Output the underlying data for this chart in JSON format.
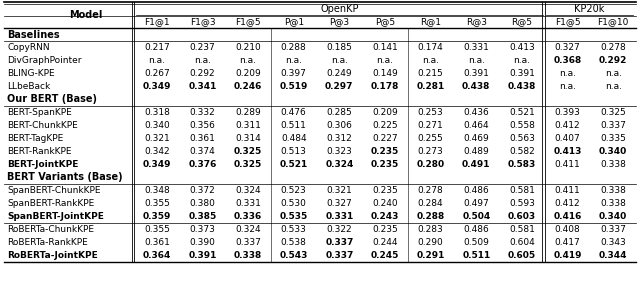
{
  "col_labels_row1": [
    "Model",
    "OpenKP",
    "KP20k"
  ],
  "col_labels_row2": [
    "F1@1",
    "F1@3",
    "F1@5",
    "P@1",
    "P@3",
    "P@5",
    "R@1",
    "R@3",
    "R@5",
    "F1@5",
    "F1@10"
  ],
  "sections": [
    {
      "label": "Baselines",
      "rows": [
        {
          "model": "CopyRNN",
          "bold_model": false,
          "values": [
            "0.217",
            "0.237",
            "0.210",
            "0.288",
            "0.185",
            "0.141",
            "0.174",
            "0.331",
            "0.413",
            "0.327",
            "0.278"
          ],
          "bold_vals": [
            false,
            false,
            false,
            false,
            false,
            false,
            false,
            false,
            false,
            false,
            false
          ]
        },
        {
          "model": "DivGraphPointer",
          "bold_model": false,
          "values": [
            "n.a.",
            "n.a.",
            "n.a.",
            "n.a.",
            "n.a.",
            "n.a.",
            "n.a.",
            "n.a.",
            "n.a.",
            "0.368",
            "0.292"
          ],
          "bold_vals": [
            false,
            false,
            false,
            false,
            false,
            false,
            false,
            false,
            false,
            true,
            true
          ]
        },
        {
          "model": "BLING-KPE",
          "bold_model": false,
          "values": [
            "0.267",
            "0.292",
            "0.209",
            "0.397",
            "0.249",
            "0.149",
            "0.215",
            "0.391",
            "0.391",
            "n.a.",
            "n.a."
          ],
          "bold_vals": [
            false,
            false,
            false,
            false,
            false,
            false,
            false,
            false,
            false,
            false,
            false
          ]
        },
        {
          "model": "LLbeBack",
          "bold_model": false,
          "values": [
            "0.349",
            "0.341",
            "0.246",
            "0.519",
            "0.297",
            "0.178",
            "0.281",
            "0.438",
            "0.438",
            "n.a.",
            "n.a."
          ],
          "bold_vals": [
            true,
            true,
            true,
            true,
            true,
            true,
            true,
            true,
            true,
            false,
            false
          ]
        }
      ]
    },
    {
      "label": "Our BERT (Base)",
      "rows": [
        {
          "model": "BERT-SpanKPE",
          "bold_model": false,
          "values": [
            "0.318",
            "0.332",
            "0.289",
            "0.476",
            "0.285",
            "0.209",
            "0.253",
            "0.436",
            "0.521",
            "0.393",
            "0.325"
          ],
          "bold_vals": [
            false,
            false,
            false,
            false,
            false,
            false,
            false,
            false,
            false,
            false,
            false
          ]
        },
        {
          "model": "BERT-ChunkKPE",
          "bold_model": false,
          "values": [
            "0.340",
            "0.356",
            "0.311",
            "0.511",
            "0.306",
            "0.225",
            "0.271",
            "0.464",
            "0.558",
            "0.412",
            "0.337"
          ],
          "bold_vals": [
            false,
            false,
            false,
            false,
            false,
            false,
            false,
            false,
            false,
            false,
            false
          ]
        },
        {
          "model": "BERT-TagKPE",
          "bold_model": false,
          "values": [
            "0.321",
            "0.361",
            "0.314",
            "0.484",
            "0.312",
            "0.227",
            "0.255",
            "0.469",
            "0.563",
            "0.407",
            "0.335"
          ],
          "bold_vals": [
            false,
            false,
            false,
            false,
            false,
            false,
            false,
            false,
            false,
            false,
            false
          ]
        },
        {
          "model": "BERT-RankKPE",
          "bold_model": false,
          "values": [
            "0.342",
            "0.374",
            "0.325",
            "0.513",
            "0.323",
            "0.235",
            "0.273",
            "0.489",
            "0.582",
            "0.413",
            "0.340"
          ],
          "bold_vals": [
            false,
            false,
            true,
            false,
            false,
            true,
            false,
            false,
            false,
            true,
            true
          ]
        },
        {
          "model": "BERT-JointKPE",
          "bold_model": true,
          "values": [
            "0.349",
            "0.376",
            "0.325",
            "0.521",
            "0.324",
            "0.235",
            "0.280",
            "0.491",
            "0.583",
            "0.411",
            "0.338"
          ],
          "bold_vals": [
            true,
            true,
            true,
            true,
            true,
            true,
            true,
            true,
            true,
            false,
            false
          ]
        }
      ]
    },
    {
      "label": "BERT Variants (Base)",
      "sub_groups": [
        {
          "rows": [
            {
              "model": "SpanBERT-ChunkKPE",
              "bold_model": false,
              "values": [
                "0.348",
                "0.372",
                "0.324",
                "0.523",
                "0.321",
                "0.235",
                "0.278",
                "0.486",
                "0.581",
                "0.411",
                "0.338"
              ],
              "bold_vals": [
                false,
                false,
                false,
                false,
                false,
                false,
                false,
                false,
                false,
                false,
                false
              ]
            },
            {
              "model": "SpanBERT-RankKPE",
              "bold_model": false,
              "values": [
                "0.355",
                "0.380",
                "0.331",
                "0.530",
                "0.327",
                "0.240",
                "0.284",
                "0.497",
                "0.593",
                "0.412",
                "0.338"
              ],
              "bold_vals": [
                false,
                false,
                false,
                false,
                false,
                false,
                false,
                false,
                false,
                false,
                false
              ]
            },
            {
              "model": "SpanBERT-JointKPE",
              "bold_model": true,
              "values": [
                "0.359",
                "0.385",
                "0.336",
                "0.535",
                "0.331",
                "0.243",
                "0.288",
                "0.504",
                "0.603",
                "0.416",
                "0.340"
              ],
              "bold_vals": [
                true,
                true,
                true,
                true,
                true,
                true,
                true,
                true,
                true,
                true,
                true
              ]
            }
          ]
        },
        {
          "rows": [
            {
              "model": "RoBERTa-ChunkKPE",
              "bold_model": false,
              "values": [
                "0.355",
                "0.373",
                "0.324",
                "0.533",
                "0.322",
                "0.235",
                "0.283",
                "0.486",
                "0.581",
                "0.408",
                "0.337"
              ],
              "bold_vals": [
                false,
                false,
                false,
                false,
                false,
                false,
                false,
                false,
                false,
                false,
                false
              ]
            },
            {
              "model": "RoBERTa-RankKPE",
              "bold_model": false,
              "values": [
                "0.361",
                "0.390",
                "0.337",
                "0.538",
                "0.337",
                "0.244",
                "0.290",
                "0.509",
                "0.604",
                "0.417",
                "0.343"
              ],
              "bold_vals": [
                false,
                false,
                false,
                false,
                true,
                false,
                false,
                false,
                false,
                false,
                false
              ]
            },
            {
              "model": "RoBERTa-JointKPE",
              "bold_model": true,
              "values": [
                "0.364",
                "0.391",
                "0.338",
                "0.543",
                "0.337",
                "0.245",
                "0.291",
                "0.511",
                "0.605",
                "0.419",
                "0.344"
              ],
              "bold_vals": [
                true,
                true,
                true,
                true,
                true,
                true,
                true,
                true,
                true,
                true,
                true
              ]
            }
          ]
        }
      ]
    }
  ],
  "font_family": "DejaVu Sans",
  "fontsize_header": 7.0,
  "fontsize_data": 6.5,
  "fontsize_section": 7.0
}
